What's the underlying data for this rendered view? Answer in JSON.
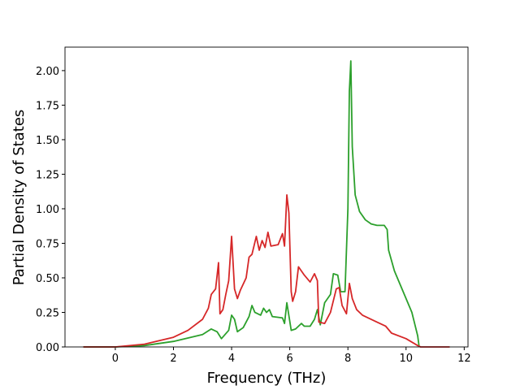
{
  "chart_data": {
    "type": "line",
    "xlabel": "Frequency (THz)",
    "ylabel": "Partial Density of States",
    "xlim": [
      -1.73,
      12.13
    ],
    "xticks": [
      0,
      2,
      4,
      6,
      8,
      10,
      12
    ],
    "ylim": [
      0,
      2.17
    ],
    "yticks": [
      {
        "value": 0,
        "label": "0.00"
      },
      {
        "value": 0.25,
        "label": "0.25"
      },
      {
        "value": 0.5,
        "label": "0.50"
      },
      {
        "value": 0.75,
        "label": "0.75"
      },
      {
        "value": 1,
        "label": "1.00"
      },
      {
        "value": 1.25,
        "label": "1.25"
      },
      {
        "value": 1.5,
        "label": "1.50"
      },
      {
        "value": 1.75,
        "label": "1.75"
      },
      {
        "value": 2,
        "label": "2.00"
      }
    ],
    "series": [
      {
        "color": "#2ca02c",
        "x": [
          -1.1,
          0,
          1,
          2,
          3,
          3.3,
          3.5,
          3.65,
          3.9,
          4.0,
          4.1,
          4.2,
          4.4,
          4.6,
          4.7,
          4.8,
          5.0,
          5.1,
          5.2,
          5.3,
          5.4,
          5.75,
          5.82,
          5.9,
          6.05,
          6.2,
          6.4,
          6.5,
          6.7,
          6.85,
          6.95,
          7.05,
          7.2,
          7.4,
          7.5,
          7.65,
          7.75,
          7.9,
          7.95,
          8.0,
          8.05,
          8.1,
          8.15,
          8.25,
          8.4,
          8.6,
          8.8,
          9.0,
          9.25,
          9.35,
          9.4,
          9.6,
          9.9,
          10.2,
          10.4,
          10.45
        ],
        "values": [
          0,
          0,
          0.01,
          0.04,
          0.09,
          0.13,
          0.11,
          0.06,
          0.12,
          0.23,
          0.2,
          0.11,
          0.14,
          0.22,
          0.3,
          0.25,
          0.23,
          0.28,
          0.25,
          0.27,
          0.22,
          0.21,
          0.17,
          0.32,
          0.12,
          0.13,
          0.17,
          0.15,
          0.15,
          0.2,
          0.27,
          0.16,
          0.32,
          0.38,
          0.53,
          0.52,
          0.4,
          0.4,
          0.7,
          1.0,
          1.85,
          2.07,
          1.45,
          1.1,
          0.98,
          0.92,
          0.89,
          0.88,
          0.88,
          0.85,
          0.7,
          0.55,
          0.4,
          0.25,
          0.08,
          0
        ]
      },
      {
        "color": "#d62728",
        "x": [
          -1.1,
          0,
          1,
          2,
          2.5,
          3,
          3.2,
          3.3,
          3.45,
          3.55,
          3.6,
          3.7,
          3.8,
          3.9,
          4.0,
          4.1,
          4.2,
          4.3,
          4.5,
          4.6,
          4.7,
          4.85,
          4.95,
          5.05,
          5.15,
          5.25,
          5.35,
          5.6,
          5.75,
          5.82,
          5.9,
          5.97,
          6.05,
          6.1,
          6.2,
          6.3,
          6.5,
          6.7,
          6.85,
          6.95,
          7.0,
          7.2,
          7.4,
          7.6,
          7.7,
          7.8,
          7.95,
          8.05,
          8.15,
          8.3,
          8.5,
          9.0,
          9.3,
          9.5,
          10.0,
          10.4,
          10.5,
          11.5
        ],
        "values": [
          0,
          0,
          0.02,
          0.07,
          0.12,
          0.2,
          0.28,
          0.38,
          0.42,
          0.61,
          0.24,
          0.27,
          0.38,
          0.48,
          0.8,
          0.42,
          0.35,
          0.41,
          0.5,
          0.65,
          0.67,
          0.8,
          0.7,
          0.77,
          0.72,
          0.83,
          0.73,
          0.74,
          0.82,
          0.73,
          1.1,
          0.97,
          0.4,
          0.33,
          0.4,
          0.58,
          0.52,
          0.47,
          0.53,
          0.48,
          0.18,
          0.17,
          0.25,
          0.42,
          0.43,
          0.3,
          0.24,
          0.46,
          0.35,
          0.27,
          0.23,
          0.18,
          0.15,
          0.1,
          0.06,
          0.01,
          0,
          0
        ]
      }
    ]
  }
}
